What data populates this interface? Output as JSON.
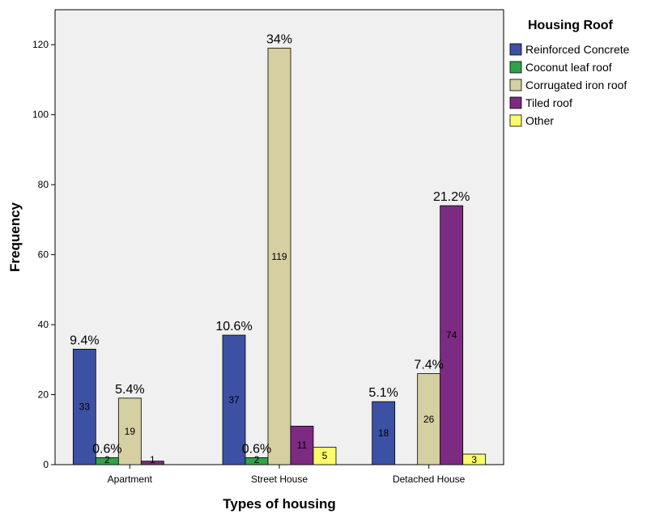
{
  "chart_data": {
    "type": "bar",
    "xlabel": "Types of housing",
    "ylabel": "Frequency",
    "ylim": [
      0,
      130
    ],
    "yticks": [
      0,
      20,
      40,
      60,
      80,
      100,
      120
    ],
    "categories": [
      "Apartment",
      "Street House",
      "Detached House"
    ],
    "legend": {
      "title": "Housing Roof",
      "placement": "right"
    },
    "grid": false,
    "series": [
      {
        "name": "Reinforced Concrete",
        "color": "#3c51a3",
        "values": [
          33,
          37,
          18
        ],
        "value_labels": [
          "33",
          "37",
          "18"
        ],
        "pct_labels": [
          "9.4%",
          "10.6%",
          "5.1%"
        ]
      },
      {
        "name": "Coconut leaf roof",
        "color": "#2fa34a",
        "values": [
          2,
          2,
          0
        ],
        "value_labels": [
          "2",
          "2",
          ""
        ],
        "pct_labels": [
          "0.6%",
          "0.6%",
          ""
        ]
      },
      {
        "name": "Corrugated iron roof",
        "color": "#d5cfa1",
        "values": [
          19,
          119,
          26
        ],
        "value_labels": [
          "19",
          "119",
          "26"
        ],
        "pct_labels": [
          "5.4%",
          "34%",
          "7.4%"
        ]
      },
      {
        "name": "Tiled roof",
        "color": "#7d2a82",
        "values": [
          1,
          11,
          74
        ],
        "value_labels": [
          "1",
          "11",
          "74"
        ],
        "pct_labels": [
          "",
          "",
          "21.2%"
        ]
      },
      {
        "name": "Other",
        "color": "#fbfb6a",
        "values": [
          0,
          5,
          3
        ],
        "value_labels": [
          "",
          "5",
          "3"
        ],
        "pct_labels": [
          "",
          "",
          ""
        ]
      }
    ]
  }
}
